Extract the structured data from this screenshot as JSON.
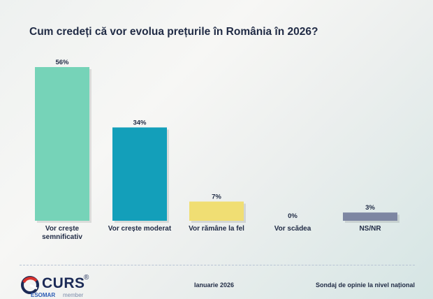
{
  "chart_data": {
    "type": "bar",
    "title": "Cum credeți că vor evolua prețurile în România în 2026?",
    "categories": [
      [
        "Vor crește",
        "semnificativ"
      ],
      [
        "Vor crește moderat"
      ],
      [
        "Vor rămâne la fel"
      ],
      [
        "Vor scădea"
      ],
      [
        "NS/NR"
      ]
    ],
    "values": [
      56,
      34,
      7,
      0,
      3
    ],
    "value_labels": [
      "56%",
      "34%",
      "7%",
      "0%",
      "3%"
    ],
    "colors": [
      "#76d3b8",
      "#139fba",
      "#f0de73",
      "#c9b8a0",
      "#7d86a2"
    ],
    "ylim": [
      0,
      60
    ],
    "grid": false,
    "legend": "none"
  },
  "footer": {
    "logo_text": "CURS",
    "logo_reg": "®",
    "logo_esomar": "ESOMAR",
    "logo_member": "member",
    "date": "Ianuarie 2026",
    "note": "Sondaj de opinie la nivel național"
  }
}
